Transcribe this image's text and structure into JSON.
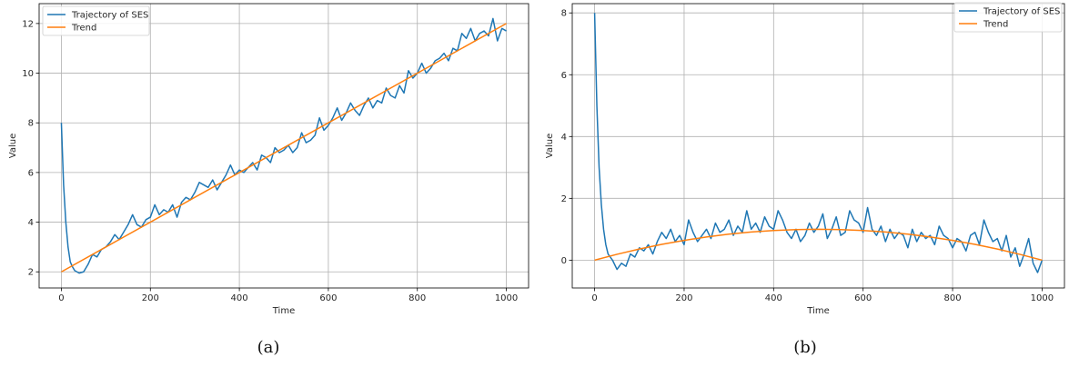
{
  "colors": {
    "trajectory": "#1f77b4",
    "trend": "#ff7f0e",
    "grid": "#b0b0b0"
  },
  "chart_data": [
    {
      "type": "line",
      "caption": "(a)",
      "xlabel": "Time",
      "ylabel": "Value",
      "xlim": [
        -50,
        1050
      ],
      "ylim": [
        1.35,
        12.8
      ],
      "xticks": [
        0,
        200,
        400,
        600,
        800,
        1000
      ],
      "yticks": [
        2,
        4,
        6,
        8,
        10,
        12
      ],
      "grid": true,
      "legend_position": "top-left",
      "series": [
        {
          "name": "Trajectory of SES",
          "color": "#1f77b4",
          "x": [
            0,
            5,
            10,
            15,
            20,
            25,
            30,
            40,
            50,
            60,
            70,
            80,
            90,
            100,
            110,
            120,
            130,
            140,
            150,
            160,
            170,
            180,
            190,
            200,
            210,
            220,
            230,
            240,
            250,
            260,
            270,
            280,
            290,
            300,
            310,
            320,
            330,
            340,
            350,
            360,
            370,
            380,
            390,
            400,
            410,
            420,
            430,
            440,
            450,
            460,
            470,
            480,
            490,
            500,
            510,
            520,
            530,
            540,
            550,
            560,
            570,
            580,
            590,
            600,
            610,
            620,
            630,
            640,
            650,
            660,
            670,
            680,
            690,
            700,
            710,
            720,
            730,
            740,
            750,
            760,
            770,
            780,
            790,
            800,
            810,
            820,
            830,
            840,
            850,
            860,
            870,
            880,
            890,
            900,
            910,
            920,
            930,
            940,
            950,
            960,
            970,
            980,
            990,
            1000
          ],
          "y": [
            8.0,
            5.5,
            4.0,
            3.0,
            2.4,
            2.2,
            2.05,
            1.95,
            2.0,
            2.3,
            2.7,
            2.6,
            2.9,
            3.0,
            3.2,
            3.5,
            3.3,
            3.6,
            3.9,
            4.3,
            3.9,
            3.8,
            4.1,
            4.2,
            4.7,
            4.3,
            4.5,
            4.4,
            4.7,
            4.2,
            4.8,
            5.0,
            4.9,
            5.2,
            5.6,
            5.5,
            5.4,
            5.7,
            5.3,
            5.6,
            5.9,
            6.3,
            5.9,
            6.1,
            6.0,
            6.2,
            6.4,
            6.1,
            6.7,
            6.6,
            6.4,
            7.0,
            6.8,
            6.9,
            7.1,
            6.8,
            7.0,
            7.6,
            7.2,
            7.3,
            7.5,
            8.2,
            7.7,
            7.9,
            8.2,
            8.6,
            8.1,
            8.4,
            8.8,
            8.5,
            8.3,
            8.7,
            9.0,
            8.6,
            8.9,
            8.8,
            9.4,
            9.1,
            9.0,
            9.5,
            9.2,
            10.1,
            9.8,
            10.0,
            10.4,
            10.0,
            10.2,
            10.5,
            10.6,
            10.8,
            10.5,
            11.0,
            10.9,
            11.6,
            11.4,
            11.8,
            11.3,
            11.6,
            11.7,
            11.5,
            12.2,
            11.3,
            11.8,
            11.7
          ]
        },
        {
          "name": "Trend",
          "color": "#ff7f0e",
          "x": [
            0,
            1000
          ],
          "y": [
            2.0,
            12.0
          ]
        }
      ]
    },
    {
      "type": "line",
      "caption": "(b)",
      "xlabel": "Time",
      "ylabel": "Value",
      "xlim": [
        -50,
        1050
      ],
      "ylim": [
        -0.9,
        8.3
      ],
      "xticks": [
        0,
        200,
        400,
        600,
        800,
        1000
      ],
      "yticks": [
        0,
        2,
        4,
        6,
        8
      ],
      "grid": true,
      "legend_position": "top-right",
      "series": [
        {
          "name": "Trajectory of SES",
          "color": "#1f77b4",
          "x": [
            0,
            5,
            10,
            15,
            20,
            25,
            30,
            40,
            50,
            60,
            70,
            80,
            90,
            100,
            110,
            120,
            130,
            140,
            150,
            160,
            170,
            180,
            190,
            200,
            210,
            220,
            230,
            240,
            250,
            260,
            270,
            280,
            290,
            300,
            310,
            320,
            330,
            340,
            350,
            360,
            370,
            380,
            390,
            400,
            410,
            420,
            430,
            440,
            450,
            460,
            470,
            480,
            490,
            500,
            510,
            520,
            530,
            540,
            550,
            560,
            570,
            580,
            590,
            600,
            610,
            620,
            630,
            640,
            650,
            660,
            670,
            680,
            690,
            700,
            710,
            720,
            730,
            740,
            750,
            760,
            770,
            780,
            790,
            800,
            810,
            820,
            830,
            840,
            850,
            860,
            870,
            880,
            890,
            900,
            910,
            920,
            930,
            940,
            950,
            960,
            970,
            980,
            990,
            1000
          ],
          "y": [
            8.0,
            5.0,
            3.0,
            1.8,
            1.0,
            0.5,
            0.2,
            0.0,
            -0.3,
            -0.1,
            -0.2,
            0.2,
            0.1,
            0.4,
            0.3,
            0.5,
            0.2,
            0.6,
            0.9,
            0.7,
            1.0,
            0.6,
            0.8,
            0.5,
            1.3,
            0.9,
            0.6,
            0.8,
            1.0,
            0.7,
            1.2,
            0.9,
            1.0,
            1.3,
            0.8,
            1.1,
            0.9,
            1.6,
            1.0,
            1.2,
            0.9,
            1.4,
            1.1,
            1.0,
            1.6,
            1.3,
            0.9,
            0.7,
            1.0,
            0.6,
            0.8,
            1.2,
            0.9,
            1.1,
            1.5,
            0.7,
            1.0,
            1.4,
            0.8,
            0.9,
            1.6,
            1.3,
            1.2,
            0.9,
            1.7,
            1.0,
            0.8,
            1.1,
            0.6,
            1.0,
            0.7,
            0.9,
            0.8,
            0.4,
            1.0,
            0.6,
            0.9,
            0.7,
            0.8,
            0.5,
            1.1,
            0.8,
            0.7,
            0.4,
            0.7,
            0.6,
            0.3,
            0.8,
            0.9,
            0.5,
            1.3,
            0.9,
            0.6,
            0.7,
            0.3,
            0.8,
            0.1,
            0.4,
            -0.2,
            0.2,
            0.7,
            -0.1,
            -0.4,
            0.0
          ]
        },
        {
          "name": "Trend",
          "color": "#ff7f0e",
          "x": [
            0,
            50,
            100,
            150,
            200,
            250,
            300,
            350,
            400,
            450,
            500,
            550,
            600,
            650,
            700,
            750,
            800,
            850,
            900,
            950,
            1000
          ],
          "y": [
            0.0,
            0.19,
            0.36,
            0.51,
            0.64,
            0.75,
            0.84,
            0.91,
            0.96,
            0.99,
            1.0,
            0.99,
            0.96,
            0.91,
            0.84,
            0.75,
            0.64,
            0.51,
            0.36,
            0.19,
            0.0
          ]
        }
      ]
    }
  ]
}
